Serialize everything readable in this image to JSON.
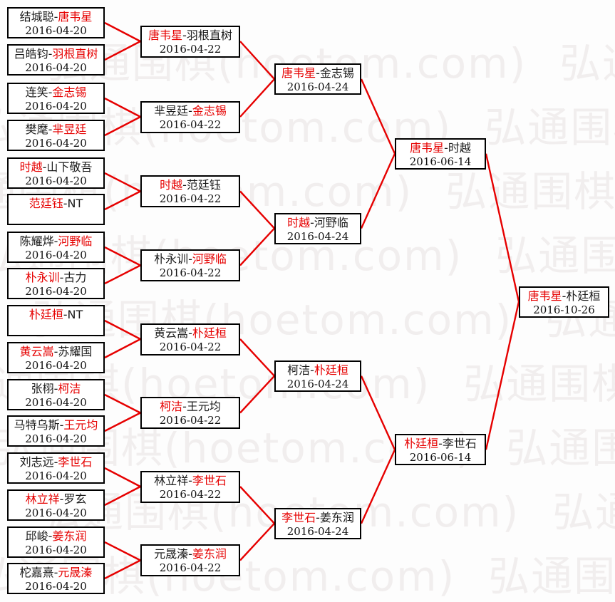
{
  "watermark": {
    "text": "弘通围棋(hoetom.com)"
  },
  "separator": "-",
  "colors": {
    "connector_line": "#e60000",
    "winner_text": "#e60000",
    "box_border": "#000000",
    "box_background": "#ffffff",
    "watermark_text": "#f1eeee",
    "page_background": "#fdfdfd"
  },
  "rounds": [
    {
      "matches": [
        {
          "p1": "结城聪",
          "p2": "唐韦星",
          "winner": 2,
          "date": "2016-04-20"
        },
        {
          "p1": "吕皓钧",
          "p2": "羽根直树",
          "winner": 2,
          "date": "2016-04-20"
        },
        {
          "p1": "连笑",
          "p2": "金志锡",
          "winner": 2,
          "date": "2016-04-20"
        },
        {
          "p1": "樊麾",
          "p2": "芈昱廷",
          "winner": 2,
          "date": "2016-04-20"
        },
        {
          "p1": "时越",
          "p2": "山下敬吾",
          "winner": 1,
          "date": "2016-04-20"
        },
        {
          "p1": "范廷钰",
          "p2": "NT",
          "winner": 1,
          "date": ""
        },
        {
          "p1": "陈耀烨",
          "p2": "河野临",
          "winner": 2,
          "date": "2016-04-20"
        },
        {
          "p1": "朴永训",
          "p2": "古力",
          "winner": 1,
          "date": "2016-04-20"
        },
        {
          "p1": "朴廷桓",
          "p2": "NT",
          "winner": 1,
          "date": ""
        },
        {
          "p1": "黄云嵩",
          "p2": "苏耀国",
          "winner": 1,
          "date": "2016-04-20"
        },
        {
          "p1": "张栩",
          "p2": "柯洁",
          "winner": 2,
          "date": "2016-04-20"
        },
        {
          "p1": "马特乌斯",
          "p2": "王元均",
          "winner": 2,
          "date": "2016-04-20"
        },
        {
          "p1": "刘志远",
          "p2": "李世石",
          "winner": 2,
          "date": "2016-04-20"
        },
        {
          "p1": "林立祥",
          "p2": "罗玄",
          "winner": 1,
          "date": "2016-04-20"
        },
        {
          "p1": "邱峻",
          "p2": "姜东润",
          "winner": 2,
          "date": "2016-04-20"
        },
        {
          "p1": "柁嘉熹",
          "p2": "元晟溱",
          "winner": 2,
          "date": "2016-04-20"
        }
      ]
    },
    {
      "matches": [
        {
          "p1": "唐韦星",
          "p2": "羽根直树",
          "winner": 1,
          "date": "2016-04-22"
        },
        {
          "p1": "芈昱廷",
          "p2": "金志锡",
          "winner": 2,
          "date": "2016-04-22"
        },
        {
          "p1": "时越",
          "p2": "范廷钰",
          "winner": 1,
          "date": "2016-04-22"
        },
        {
          "p1": "朴永训",
          "p2": "河野临",
          "winner": 2,
          "date": "2016-04-22"
        },
        {
          "p1": "黄云嵩",
          "p2": "朴廷桓",
          "winner": 2,
          "date": "2016-04-22"
        },
        {
          "p1": "柯洁",
          "p2": "王元均",
          "winner": 1,
          "date": "2016-04-22"
        },
        {
          "p1": "林立祥",
          "p2": "李世石",
          "winner": 2,
          "date": "2016-04-22"
        },
        {
          "p1": "元晟溱",
          "p2": "姜东润",
          "winner": 2,
          "date": "2016-04-22"
        }
      ]
    },
    {
      "matches": [
        {
          "p1": "唐韦星",
          "p2": "金志锡",
          "winner": 1,
          "date": "2016-04-24"
        },
        {
          "p1": "时越",
          "p2": "河野临",
          "winner": 1,
          "date": "2016-04-24"
        },
        {
          "p1": "柯洁",
          "p2": "朴廷桓",
          "winner": 2,
          "date": "2016-04-24"
        },
        {
          "p1": "李世石",
          "p2": "姜东润",
          "winner": 1,
          "date": "2016-04-24"
        }
      ]
    },
    {
      "matches": [
        {
          "p1": "唐韦星",
          "p2": "时越",
          "winner": 1,
          "date": "2016-06-14"
        },
        {
          "p1": "朴廷桓",
          "p2": "李世石",
          "winner": 1,
          "date": "2016-06-14"
        }
      ]
    },
    {
      "matches": [
        {
          "p1": "唐韦星",
          "p2": "朴廷桓",
          "winner": 1,
          "date": "2016-10-26"
        }
      ]
    }
  ]
}
